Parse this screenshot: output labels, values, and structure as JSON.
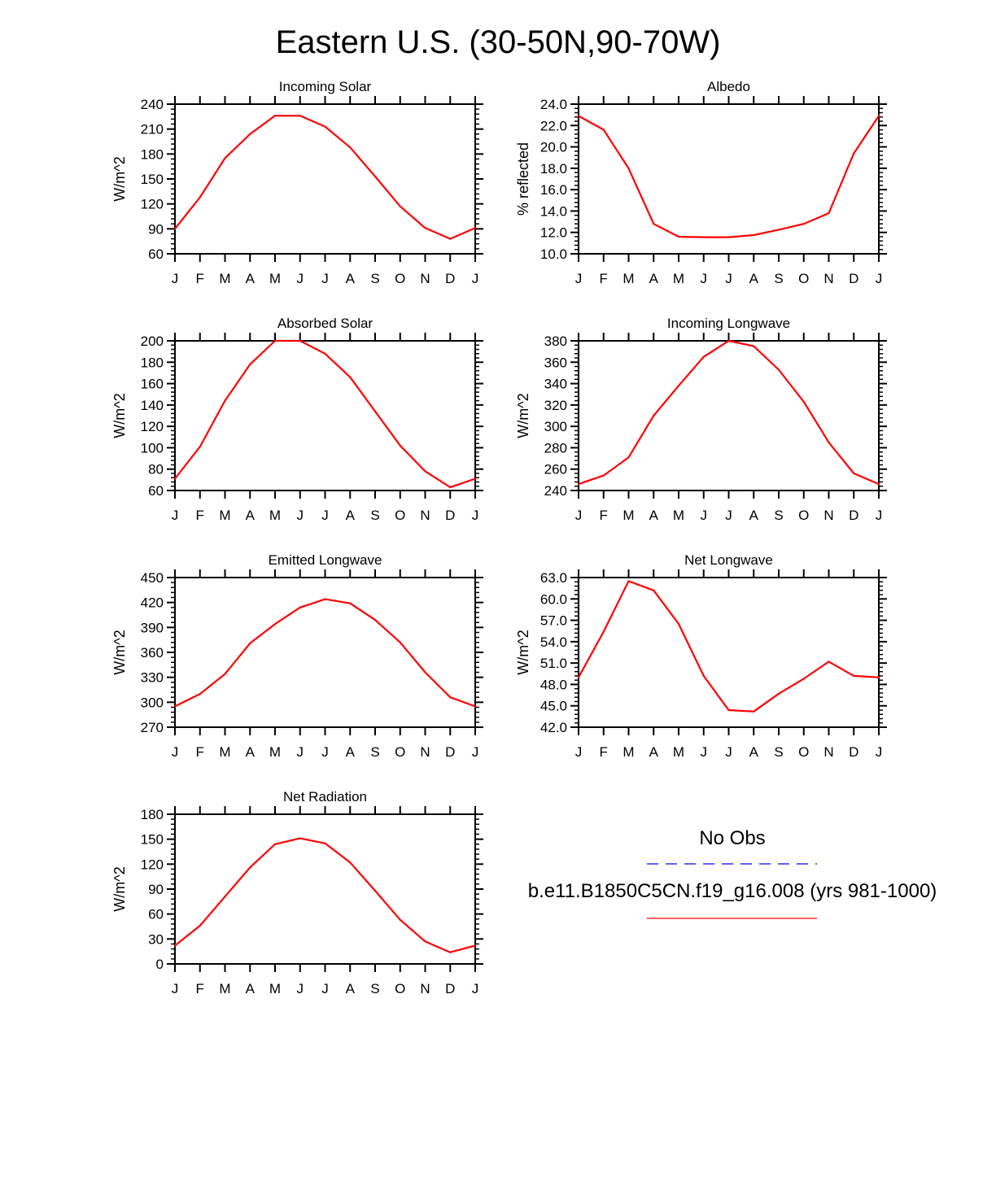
{
  "page_title": "Eastern U.S. (30-50N,90-70W)",
  "colors": {
    "model": "#ff0000",
    "obs": "#0000ff",
    "axis": "#000000"
  },
  "legend": {
    "obs_label": "No Obs",
    "model_label": "b.e11.B1850C5CN.f19_g16.008 (yrs 981-1000)"
  },
  "chart_data": [
    {
      "type": "line",
      "title": "Incoming Solar",
      "ylabel": "W/m^2",
      "categories": [
        "J",
        "F",
        "M",
        "A",
        "M",
        "J",
        "J",
        "A",
        "S",
        "O",
        "N",
        "D",
        "J"
      ],
      "ylim": [
        60,
        240
      ],
      "yticks": [
        60,
        90,
        120,
        150,
        180,
        210,
        240
      ],
      "ytick_labels": [
        "60",
        "90",
        "120",
        "150",
        "180",
        "210",
        "240"
      ],
      "series": [
        {
          "name": "b.e11.B1850C5CN.f19_g16.008 (yrs 981-1000)",
          "values": [
            90,
            128,
            175,
            204,
            226,
            226,
            213,
            188,
            153,
            117,
            91,
            78,
            91
          ]
        }
      ]
    },
    {
      "type": "line",
      "title": "Albedo",
      "ylabel": "% reflected",
      "categories": [
        "J",
        "F",
        "M",
        "A",
        "M",
        "J",
        "J",
        "A",
        "S",
        "O",
        "N",
        "D",
        "J"
      ],
      "ylim": [
        10,
        24
      ],
      "yticks": [
        10,
        12,
        14,
        16,
        18,
        20,
        22,
        24
      ],
      "ytick_labels": [
        "10.0",
        "12.0",
        "14.0",
        "16.0",
        "18.0",
        "20.0",
        "22.0",
        "24.0"
      ],
      "series": [
        {
          "name": "b.e11.B1850C5CN.f19_g16.008 (yrs 981-1000)",
          "values": [
            22.9,
            21.6,
            18.0,
            12.8,
            11.6,
            11.55,
            11.55,
            11.75,
            12.25,
            12.8,
            13.8,
            19.4,
            22.9
          ]
        }
      ]
    },
    {
      "type": "line",
      "title": "Absorbed Solar",
      "ylabel": "W/m^2",
      "categories": [
        "J",
        "F",
        "M",
        "A",
        "M",
        "J",
        "J",
        "A",
        "S",
        "O",
        "N",
        "D",
        "J"
      ],
      "ylim": [
        60,
        200
      ],
      "yticks": [
        60,
        80,
        100,
        120,
        140,
        160,
        180,
        200
      ],
      "ytick_labels": [
        "60",
        "80",
        "100",
        "120",
        "140",
        "160",
        "180",
        "200"
      ],
      "series": [
        {
          "name": "b.e11.B1850C5CN.f19_g16.008 (yrs 981-1000)",
          "values": [
            71,
            101,
            144,
            178,
            200,
            200,
            188,
            166,
            134,
            102,
            78,
            63,
            71
          ]
        }
      ]
    },
    {
      "type": "line",
      "title": "Incoming Longwave",
      "ylabel": "W/m^2",
      "categories": [
        "J",
        "F",
        "M",
        "A",
        "M",
        "J",
        "J",
        "A",
        "S",
        "O",
        "N",
        "D",
        "J"
      ],
      "ylim": [
        240,
        380
      ],
      "yticks": [
        240,
        260,
        280,
        300,
        320,
        340,
        360,
        380
      ],
      "ytick_labels": [
        "240",
        "260",
        "280",
        "300",
        "320",
        "340",
        "360",
        "380"
      ],
      "series": [
        {
          "name": "b.e11.B1850C5CN.f19_g16.008 (yrs 981-1000)",
          "values": [
            246,
            254,
            271,
            310,
            338,
            365,
            380,
            375,
            353,
            323,
            285,
            256,
            246
          ]
        }
      ]
    },
    {
      "type": "line",
      "title": "Emitted Longwave",
      "ylabel": "W/m^2",
      "categories": [
        "J",
        "F",
        "M",
        "A",
        "M",
        "J",
        "J",
        "A",
        "S",
        "O",
        "N",
        "D",
        "J"
      ],
      "ylim": [
        270,
        450
      ],
      "yticks": [
        270,
        300,
        330,
        360,
        390,
        420,
        450
      ],
      "ytick_labels": [
        "270",
        "300",
        "330",
        "360",
        "390",
        "420",
        "450"
      ],
      "series": [
        {
          "name": "b.e11.B1850C5CN.f19_g16.008 (yrs 981-1000)",
          "values": [
            295,
            310,
            334,
            371,
            394,
            414,
            424,
            419,
            399,
            372,
            336,
            306,
            295
          ]
        }
      ]
    },
    {
      "type": "line",
      "title": "Net Longwave",
      "ylabel": "W/m^2",
      "categories": [
        "J",
        "F",
        "M",
        "A",
        "M",
        "J",
        "J",
        "A",
        "S",
        "O",
        "N",
        "D",
        "J"
      ],
      "ylim": [
        42,
        63
      ],
      "yticks": [
        42,
        45,
        48,
        51,
        54,
        57,
        60,
        63
      ],
      "ytick_labels": [
        "42.0",
        "45.0",
        "48.0",
        "51.0",
        "54.0",
        "57.0",
        "60.0",
        "63.0"
      ],
      "series": [
        {
          "name": "b.e11.B1850C5CN.f19_g16.008 (yrs 981-1000)",
          "values": [
            49.0,
            55.4,
            62.5,
            61.2,
            56.5,
            49.2,
            44.4,
            44.2,
            46.7,
            48.8,
            51.2,
            49.2,
            49.0
          ]
        }
      ]
    },
    {
      "type": "line",
      "title": "Net Radiation",
      "ylabel": "W/m^2",
      "categories": [
        "J",
        "F",
        "M",
        "A",
        "M",
        "J",
        "J",
        "A",
        "S",
        "O",
        "N",
        "D",
        "J"
      ],
      "ylim": [
        0,
        180
      ],
      "yticks": [
        0,
        30,
        60,
        90,
        120,
        150,
        180
      ],
      "ytick_labels": [
        "0",
        "30",
        "60",
        "90",
        "120",
        "150",
        "180"
      ],
      "series": [
        {
          "name": "b.e11.B1850C5CN.f19_g16.008 (yrs 981-1000)",
          "values": [
            22,
            46,
            81,
            116,
            144,
            151,
            145,
            122,
            88,
            53,
            27,
            14,
            22
          ]
        }
      ]
    }
  ]
}
